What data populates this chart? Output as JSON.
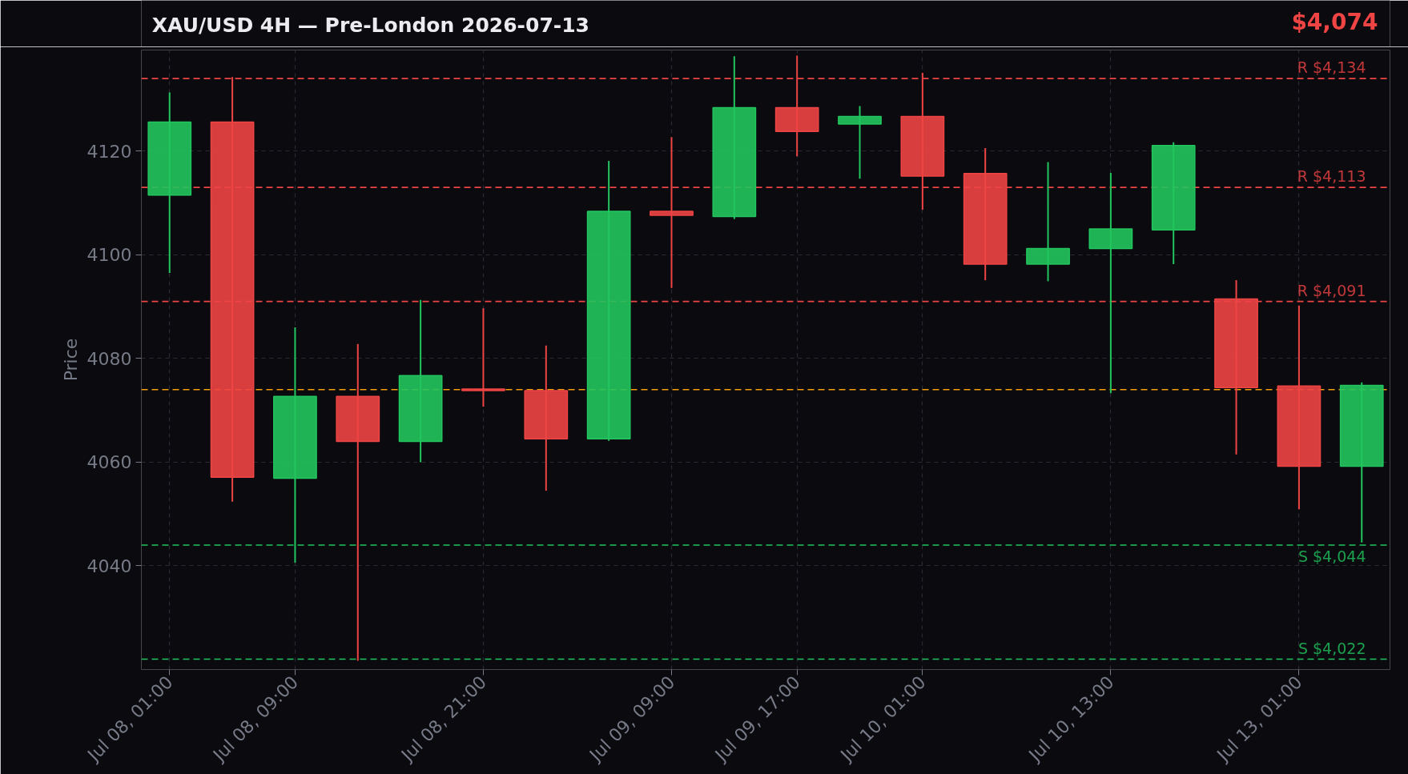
{
  "chart_data": {
    "type": "candlestick",
    "title": "XAU/USD 4H — Pre-London 2026-07-13",
    "ylabel": "Price",
    "annotations": [
      "$4,074"
    ],
    "categories": [
      "Jul 08, 01:00",
      null,
      "Jul 08, 09:00",
      null,
      null,
      "Jul 08, 21:00",
      null,
      null,
      "Jul 09, 09:00",
      null,
      "Jul 09, 17:00",
      null,
      "Jul 10, 01:00",
      null,
      null,
      "Jul 10, 13:00",
      null,
      null,
      "Jul 13, 01:00",
      null
    ],
    "ylim": [
      4020,
      4139.5
    ],
    "yticks": [
      4040,
      4060,
      4080,
      4100,
      4120
    ],
    "ohlc": [
      [
        4111.5,
        4131.3,
        4096.5,
        4125.6
      ],
      [
        4125.6,
        4134.3,
        4052.4,
        4057.1
      ],
      [
        4056.9,
        4086.0,
        4040.6,
        4072.7
      ],
      [
        4072.7,
        4082.8,
        4021.7,
        4064.0
      ],
      [
        4064.0,
        4091.3,
        4060.0,
        4076.7
      ],
      [
        4074.1,
        4089.7,
        4070.7,
        4073.8
      ],
      [
        4073.8,
        4082.5,
        4054.5,
        4064.5
      ],
      [
        4064.5,
        4118.1,
        4064.1,
        4108.4
      ],
      [
        4108.4,
        4122.7,
        4093.6,
        4107.6
      ],
      [
        4107.4,
        4138.3,
        4106.9,
        4128.4
      ],
      [
        4128.4,
        4138.4,
        4119.0,
        4123.8
      ],
      [
        4125.2,
        4128.7,
        4114.7,
        4126.7
      ],
      [
        4126.7,
        4135.1,
        4108.7,
        4115.2
      ],
      [
        4115.7,
        4120.6,
        4095.1,
        4098.2
      ],
      [
        4098.2,
        4117.9,
        4094.9,
        4101.2
      ],
      [
        4101.2,
        4115.8,
        4073.3,
        4105.0
      ],
      [
        4104.8,
        4121.7,
        4098.2,
        4121.1
      ],
      [
        4091.5,
        4095.1,
        4061.5,
        4074.4
      ],
      [
        4074.7,
        4090.2,
        4050.9,
        4059.2
      ],
      [
        4059.2,
        4075.4,
        4044.5,
        4074.8
      ]
    ],
    "colors": [
      "#22c55e",
      "#ef4444",
      "#22c55e",
      "#ef4444",
      "#22c55e",
      "#ef4444",
      "#ef4444",
      "#22c55e",
      "#ef4444",
      "#22c55e",
      "#ef4444",
      "#22c55e",
      "#ef4444",
      "#ef4444",
      "#22c55e",
      "#22c55e",
      "#22c55e",
      "#ef4444",
      "#ef4444",
      "#22c55e"
    ],
    "ref_lines": [
      {
        "axis": "y",
        "value": 4134,
        "label": "R $4,134",
        "color": "#ef4444",
        "line_style": "dashed"
      },
      {
        "axis": "y",
        "value": 4113,
        "label": "R $4,113",
        "color": "#ef4444",
        "line_style": "dashed"
      },
      {
        "axis": "y",
        "value": 4091,
        "label": "R $4,091",
        "color": "#ef4444",
        "line_style": "dashed"
      },
      {
        "axis": "y",
        "value": 4074,
        "color": "#f59e0b",
        "line_style": "dashed"
      },
      {
        "axis": "y",
        "value": 4044,
        "label": "S $4,044",
        "color": "#22c55e",
        "line_style": "dashed"
      },
      {
        "axis": "y",
        "value": 4022,
        "label": "S $4,022",
        "color": "#22c55e",
        "line_style": "dashed"
      }
    ],
    "grid": true
  }
}
